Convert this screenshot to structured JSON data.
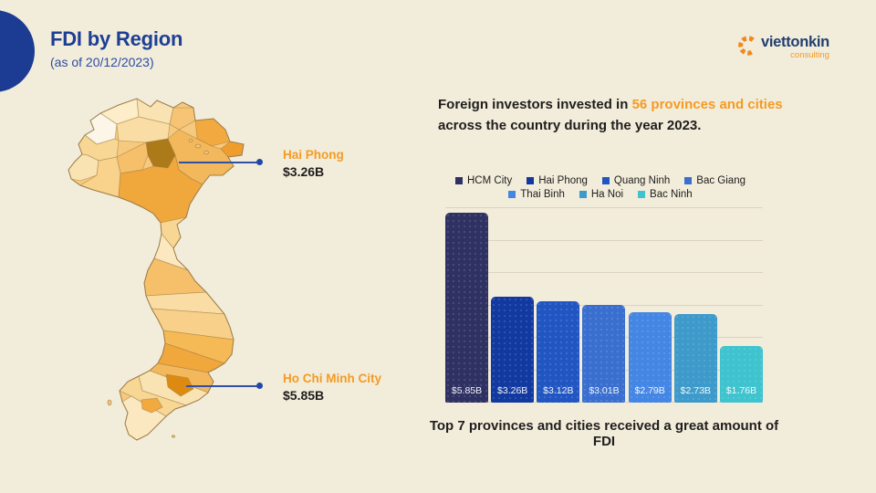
{
  "header": {
    "title": "FDI by Region",
    "subtitle": "(as of 20/12/2023)"
  },
  "logo": {
    "name": "viettonkin",
    "sub": "consulting"
  },
  "intro": {
    "pre": "Foreign investors invested in ",
    "highlight": "56 provinces and cities",
    "post": "across the country during the year 2023."
  },
  "map": {
    "base_color": "#f6c97e",
    "border_color": "#9b7c45",
    "palette": [
      "#fdeec9",
      "#f9dda4",
      "#f6c474",
      "#f2a940",
      "#ef9e2e",
      "#fbf6e8",
      "#fae3b2",
      "#f8d694",
      "#ad7a1a",
      "#f4b85c",
      "#f9d28c",
      "#f0a73c",
      "#fbe8c0",
      "#f6c06a",
      "#f8d08a",
      "#f5ba55",
      "#dd8a12"
    ],
    "callouts": [
      {
        "name": "Hai Phong",
        "value": "$3.26B"
      },
      {
        "name": "Ho Chi Minh City",
        "value": "$5.85B"
      }
    ]
  },
  "chart_data": {
    "type": "bar",
    "categories": [
      "HCM City",
      "Hai Phong",
      "Quang Ninh",
      "Bac Giang",
      "Thai Binh",
      "Ha Noi",
      "Bac Ninh"
    ],
    "values": [
      5.85,
      3.26,
      3.12,
      3.01,
      2.79,
      2.73,
      1.76
    ],
    "labels": [
      "$5.85B",
      "$3.26B",
      "$3.12B",
      "$3.01B",
      "$2.79B",
      "$2.73B",
      "$1.76B"
    ],
    "colors": [
      "#2f3163",
      "#12399f",
      "#2156c2",
      "#3a6fd0",
      "#4486e4",
      "#3d9aca",
      "#3ec3cf"
    ],
    "title": "",
    "xlabel": "",
    "ylabel": "",
    "ylim": [
      0,
      6
    ],
    "grid": true,
    "gridline_step": 1,
    "legend_position": "top",
    "legend_rows": [
      4,
      3
    ],
    "caption": "Top 7 provinces and cities received a great amount of FDI"
  },
  "colors": {
    "background": "#f2ecdb",
    "accent_blue": "#1d3f94",
    "accent_orange": "#f59b22",
    "grid": "#ddd3bf",
    "connector": "#2e50a8"
  }
}
